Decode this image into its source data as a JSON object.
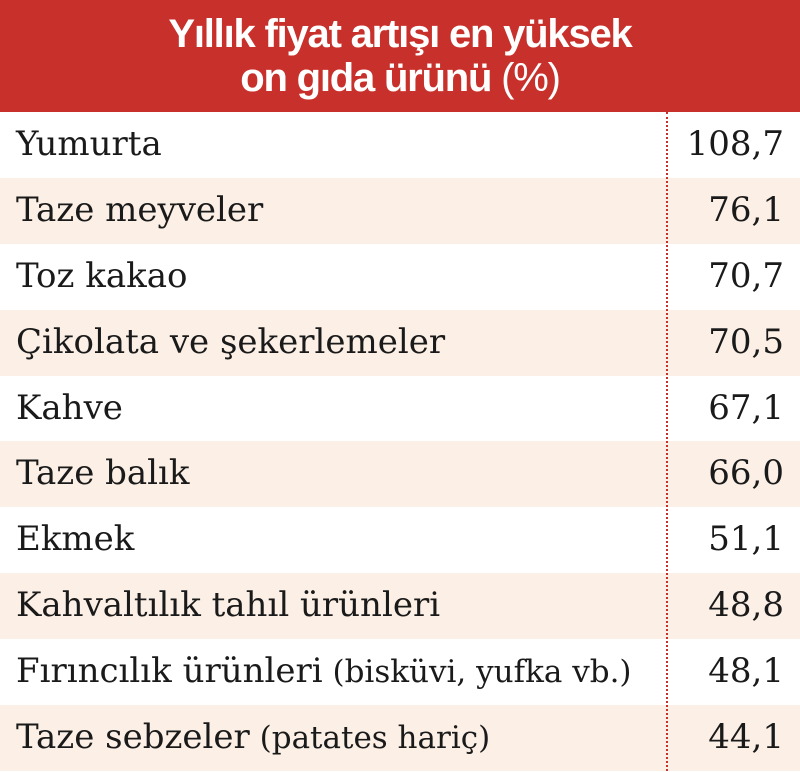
{
  "header": {
    "line1": "Yıllık fiyat artışı en yüksek",
    "line2": "on gıda ürünü",
    "unit": "(%)"
  },
  "colors": {
    "header_bg": "#c8312b",
    "row_alt_bg": "#fbefe6",
    "divider": "#c8312b"
  },
  "chart_data": {
    "type": "table",
    "title": "Yıllık fiyat artışı en yüksek on gıda ürünü (%)",
    "rows": [
      {
        "label": "Yumurta",
        "note": "",
        "value": "108,7"
      },
      {
        "label": "Taze meyveler",
        "note": "",
        "value": "76,1"
      },
      {
        "label": "Toz kakao",
        "note": "",
        "value": "70,7"
      },
      {
        "label": "Çikolata ve şekerlemeler",
        "note": "",
        "value": "70,5"
      },
      {
        "label": "Kahve",
        "note": "",
        "value": "67,1"
      },
      {
        "label": "Taze balık",
        "note": "",
        "value": "66,0"
      },
      {
        "label": "Ekmek",
        "note": "",
        "value": "51,1"
      },
      {
        "label": "Kahvaltılık tahıl ürünleri",
        "note": "",
        "value": "48,8"
      },
      {
        "label": "Fırıncılık ürünleri",
        "note": "(bisküvi, yufka vb.)",
        "value": "48,1"
      },
      {
        "label": "Taze sebzeler",
        "note": "(patates hariç)",
        "value": "44,1"
      }
    ]
  }
}
